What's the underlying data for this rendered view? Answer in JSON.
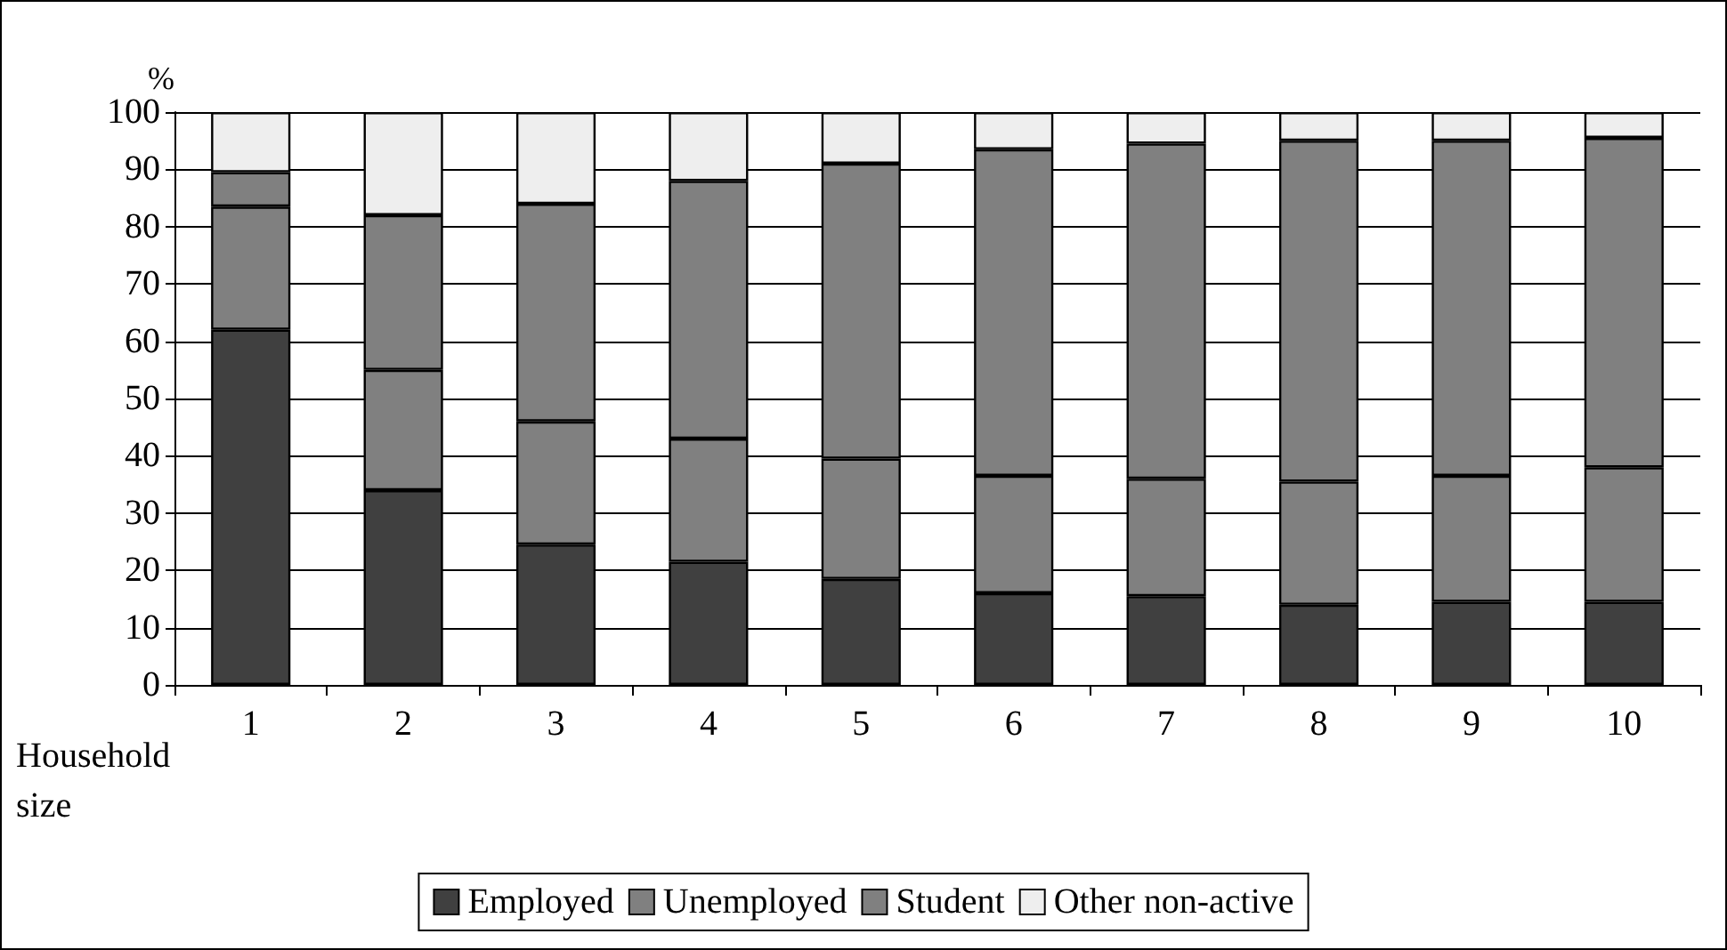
{
  "chart_data": {
    "type": "bar",
    "stacked": true,
    "ylabel": "%",
    "xlabel": "Household size",
    "categories": [
      "1",
      "2",
      "3",
      "4",
      "5",
      "6",
      "7",
      "8",
      "9",
      "10"
    ],
    "series": [
      {
        "name": "Employed",
        "color": "#404040",
        "values": [
          62,
          34,
          24.5,
          21.5,
          18.5,
          16,
          15.5,
          14,
          14.5,
          14.5
        ]
      },
      {
        "name": "Unemployed",
        "color": "#808080",
        "values": [
          21.5,
          21,
          21.5,
          21.5,
          21,
          20.5,
          20.5,
          21.5,
          22,
          23.5
        ]
      },
      {
        "name": "Student",
        "color": "#808080",
        "values": [
          6,
          27,
          38,
          45,
          51.5,
          57,
          58.5,
          59.5,
          58.5,
          57.5
        ]
      },
      {
        "name": "Other non-active",
        "color": "#eeeeee",
        "values": [
          10.5,
          18,
          16,
          12,
          9,
          6.5,
          5.5,
          5,
          5,
          4.5
        ]
      }
    ],
    "ylim": [
      0,
      100
    ],
    "yticks": [
      0,
      10,
      20,
      30,
      40,
      50,
      60,
      70,
      80,
      90,
      100
    ],
    "grid": "y",
    "legend": "bottom"
  }
}
